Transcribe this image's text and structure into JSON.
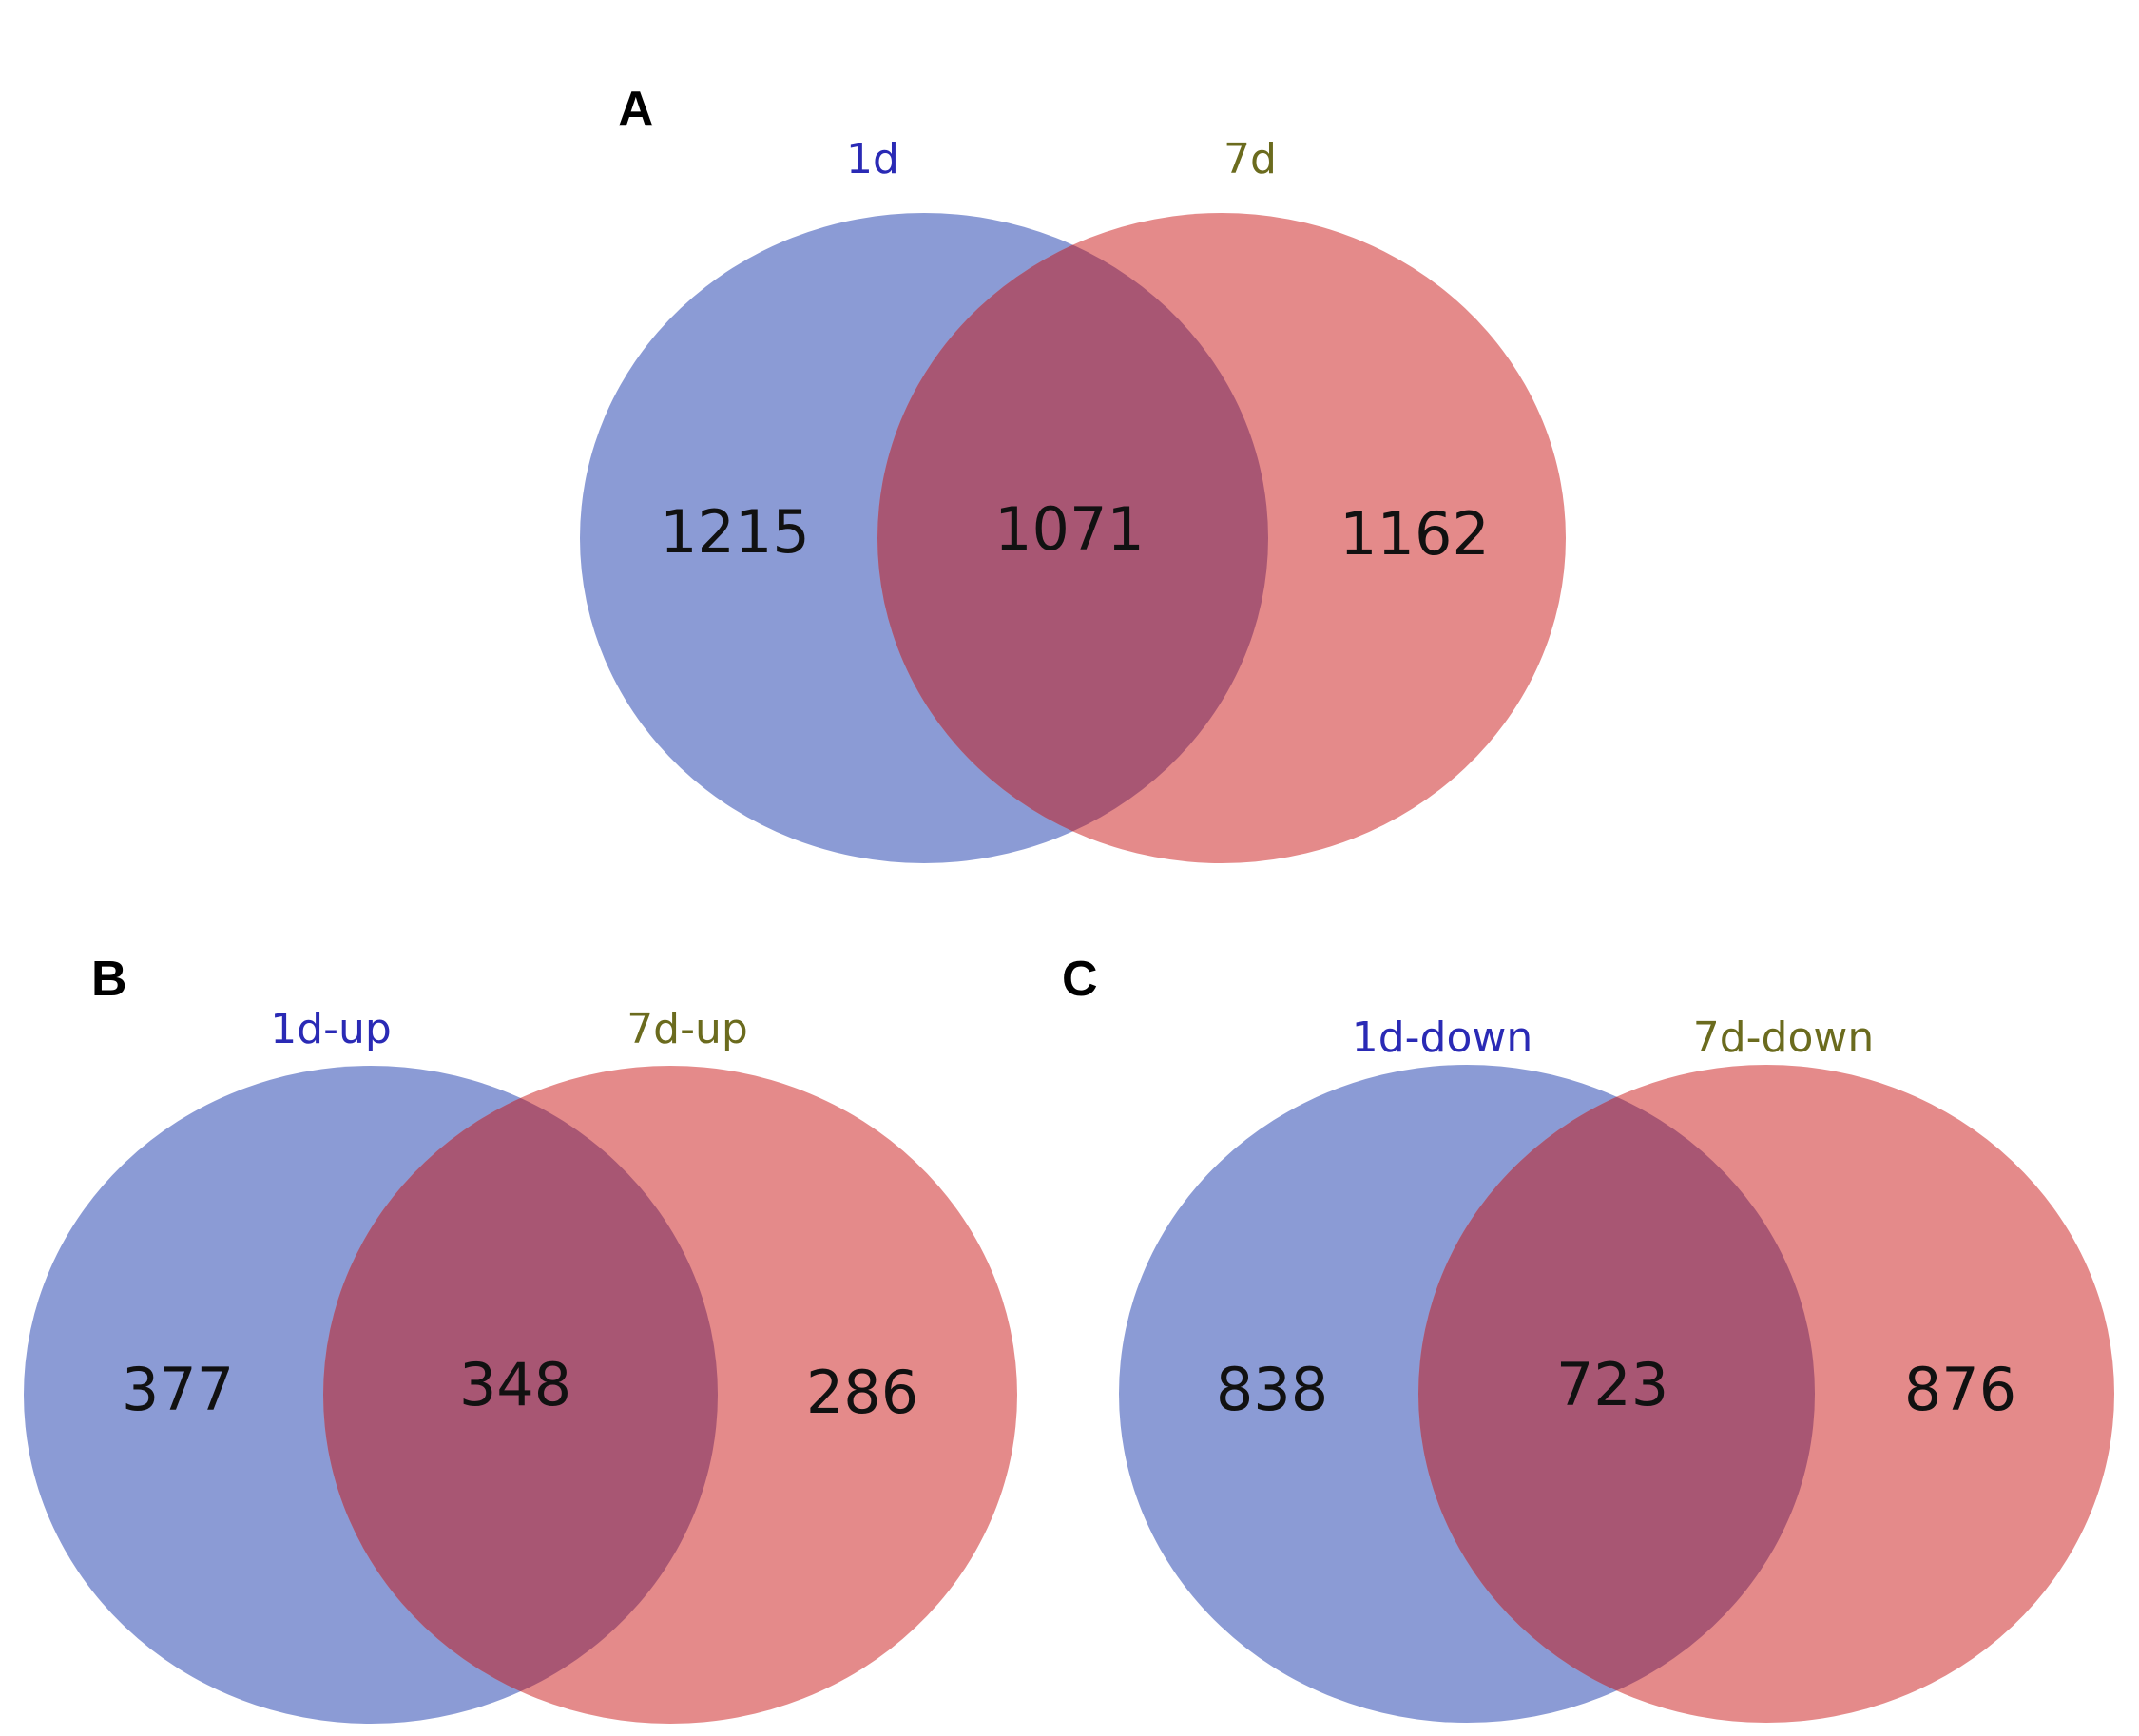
{
  "colors": {
    "set_a": "#8b9bd5",
    "set_b": "#e48a8a",
    "overlap": "#a85673",
    "label_a": "#2a2ab5",
    "label_b": "#6b6b1e"
  },
  "panels": [
    {
      "letter": "A",
      "set_a_label": "1d",
      "set_b_label": "7d",
      "only_a": "1215",
      "both": "1071",
      "only_b": "1162"
    },
    {
      "letter": "B",
      "set_a_label": "1d-up",
      "set_b_label": "7d-up",
      "only_a": "377",
      "both": "348",
      "only_b": "286"
    },
    {
      "letter": "C",
      "set_a_label": "1d-down",
      "set_b_label": "7d-down",
      "only_a": "838",
      "both": "723",
      "only_b": "876"
    }
  ]
}
